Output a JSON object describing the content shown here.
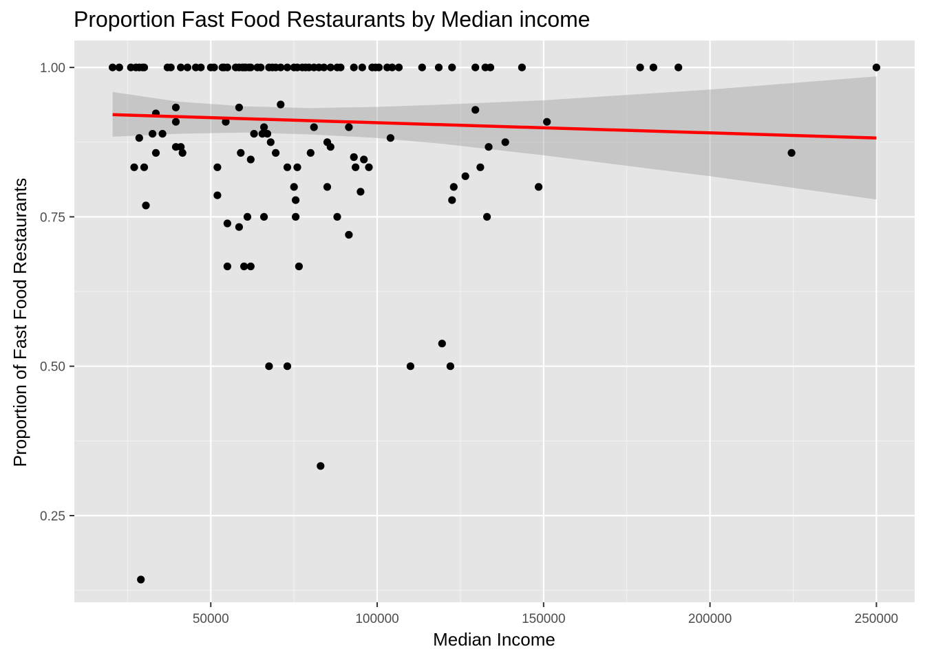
{
  "chart_data": {
    "type": "scatter",
    "title": "Proportion Fast Food Restaurants by Median income",
    "xlabel": "Median Income",
    "ylabel": "Proportion of Fast Food Restaurants",
    "xlim": [
      9000,
      261500
    ],
    "ylim": [
      0.105,
      1.045
    ],
    "x_ticks": [
      50000,
      100000,
      150000,
      200000,
      250000
    ],
    "x_tick_labels": [
      "50000",
      "100000",
      "150000",
      "200000",
      "250000"
    ],
    "y_ticks": [
      0.25,
      0.5,
      0.75,
      1.0
    ],
    "y_tick_labels": [
      "0.25",
      "0.50",
      "0.75",
      "1.00"
    ],
    "grid": true,
    "background": "#e5e5e5",
    "point_color": "#000000",
    "fit_line_color": "#ff0000",
    "ribbon_color": "#999999",
    "points": [
      [
        20500,
        1.0
      ],
      [
        22500,
        1.0
      ],
      [
        26000,
        1.0
      ],
      [
        27500,
        1.0
      ],
      [
        28500,
        1.0
      ],
      [
        29500,
        1.0
      ],
      [
        30000,
        1.0
      ],
      [
        37000,
        1.0
      ],
      [
        38000,
        1.0
      ],
      [
        41000,
        1.0
      ],
      [
        43000,
        1.0
      ],
      [
        45500,
        1.0
      ],
      [
        47000,
        1.0
      ],
      [
        50000,
        1.0
      ],
      [
        51000,
        1.0
      ],
      [
        53500,
        1.0
      ],
      [
        54000,
        1.0
      ],
      [
        55000,
        1.0
      ],
      [
        57500,
        1.0
      ],
      [
        58500,
        1.0
      ],
      [
        59500,
        1.0
      ],
      [
        60000,
        1.0
      ],
      [
        60500,
        1.0
      ],
      [
        61500,
        1.0
      ],
      [
        62000,
        1.0
      ],
      [
        64000,
        1.0
      ],
      [
        65000,
        1.0
      ],
      [
        67500,
        1.0
      ],
      [
        68500,
        1.0
      ],
      [
        69500,
        1.0
      ],
      [
        71000,
        1.0
      ],
      [
        73000,
        1.0
      ],
      [
        75000,
        1.0
      ],
      [
        76000,
        1.0
      ],
      [
        77500,
        1.0
      ],
      [
        78500,
        1.0
      ],
      [
        79500,
        1.0
      ],
      [
        81000,
        1.0
      ],
      [
        82500,
        1.0
      ],
      [
        84000,
        1.0
      ],
      [
        86000,
        1.0
      ],
      [
        88000,
        1.0
      ],
      [
        89000,
        1.0
      ],
      [
        93000,
        1.0
      ],
      [
        95500,
        1.0
      ],
      [
        98500,
        1.0
      ],
      [
        99500,
        1.0
      ],
      [
        100500,
        1.0
      ],
      [
        103000,
        1.0
      ],
      [
        104500,
        1.0
      ],
      [
        106500,
        1.0
      ],
      [
        113500,
        1.0
      ],
      [
        118500,
        1.0
      ],
      [
        122500,
        1.0
      ],
      [
        129500,
        1.0
      ],
      [
        132500,
        1.0
      ],
      [
        134000,
        1.0
      ],
      [
        143500,
        1.0
      ],
      [
        179000,
        1.0
      ],
      [
        183000,
        1.0
      ],
      [
        190500,
        1.0
      ],
      [
        250000,
        1.0
      ],
      [
        39500,
        0.933
      ],
      [
        58500,
        0.933
      ],
      [
        71000,
        0.938
      ],
      [
        129500,
        0.929
      ],
      [
        33500,
        0.923
      ],
      [
        39500,
        0.909
      ],
      [
        54500,
        0.909
      ],
      [
        66000,
        0.9
      ],
      [
        81000,
        0.9
      ],
      [
        91500,
        0.9
      ],
      [
        151000,
        0.909
      ],
      [
        32500,
        0.889
      ],
      [
        35500,
        0.889
      ],
      [
        28500,
        0.882
      ],
      [
        63000,
        0.889
      ],
      [
        65500,
        0.889
      ],
      [
        67000,
        0.889
      ],
      [
        104000,
        0.882
      ],
      [
        68000,
        0.875
      ],
      [
        85000,
        0.875
      ],
      [
        138500,
        0.875
      ],
      [
        33500,
        0.857
      ],
      [
        39500,
        0.867
      ],
      [
        41000,
        0.867
      ],
      [
        41500,
        0.857
      ],
      [
        59000,
        0.857
      ],
      [
        69500,
        0.857
      ],
      [
        80000,
        0.857
      ],
      [
        86000,
        0.867
      ],
      [
        133500,
        0.867
      ],
      [
        224500,
        0.857
      ],
      [
        62000,
        0.846
      ],
      [
        93000,
        0.85
      ],
      [
        96000,
        0.846
      ],
      [
        27000,
        0.833
      ],
      [
        30000,
        0.833
      ],
      [
        52000,
        0.833
      ],
      [
        73000,
        0.833
      ],
      [
        76000,
        0.833
      ],
      [
        93500,
        0.833
      ],
      [
        97500,
        0.833
      ],
      [
        131000,
        0.833
      ],
      [
        126500,
        0.818
      ],
      [
        75000,
        0.8
      ],
      [
        85000,
        0.8
      ],
      [
        123000,
        0.8
      ],
      [
        148500,
        0.8
      ],
      [
        95000,
        0.792
      ],
      [
        52000,
        0.786
      ],
      [
        75500,
        0.778
      ],
      [
        122500,
        0.778
      ],
      [
        30500,
        0.769
      ],
      [
        55000,
        0.739
      ],
      [
        58500,
        0.733
      ],
      [
        61000,
        0.75
      ],
      [
        66000,
        0.75
      ],
      [
        75500,
        0.75
      ],
      [
        88000,
        0.75
      ],
      [
        133000,
        0.75
      ],
      [
        91500,
        0.72
      ],
      [
        55000,
        0.667
      ],
      [
        60000,
        0.667
      ],
      [
        62000,
        0.667
      ],
      [
        76500,
        0.667
      ],
      [
        119500,
        0.538
      ],
      [
        67500,
        0.5
      ],
      [
        73000,
        0.5
      ],
      [
        110000,
        0.5
      ],
      [
        122000,
        0.5
      ],
      [
        83000,
        0.333
      ],
      [
        29000,
        0.143
      ]
    ],
    "fit_line": {
      "x": [
        20500,
        250000
      ],
      "y": [
        0.921,
        0.882
      ]
    },
    "confidence_band": {
      "x": [
        20500,
        40000,
        60000,
        80000,
        100000,
        120000,
        150000,
        200000,
        250000
      ],
      "upper": [
        0.959,
        0.943,
        0.935,
        0.932,
        0.934,
        0.938,
        0.945,
        0.963,
        0.985
      ],
      "lower": [
        0.884,
        0.889,
        0.891,
        0.888,
        0.882,
        0.872,
        0.853,
        0.818,
        0.779
      ]
    }
  }
}
